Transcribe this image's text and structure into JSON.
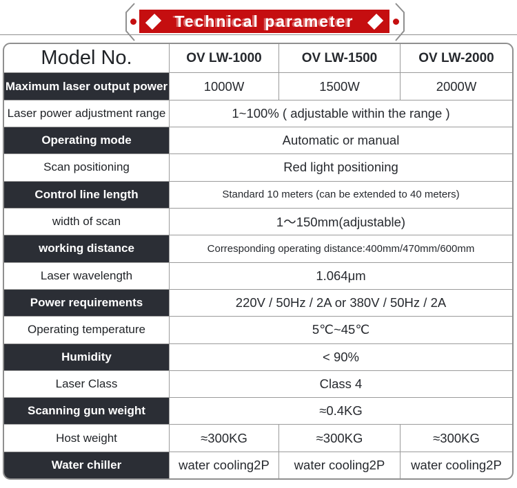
{
  "banner": {
    "title": "Technical parameter",
    "bg_color": "#c50e10",
    "diamond_icon": "diamond",
    "dot_color": "#c50e10"
  },
  "colors": {
    "banner_red": "#c50e10",
    "dark_cell": "#2b2e35",
    "grid_border": "#9a9a9a"
  },
  "table": {
    "header": {
      "label": "Model No.",
      "columns": [
        "OV LW-1000",
        "OV LW-1500",
        "OV LW-2000"
      ]
    },
    "rows": [
      {
        "label": "Maximum laser output power",
        "dark": true,
        "values": [
          "1000W",
          "1500W",
          "2000W"
        ]
      },
      {
        "label": "Laser power adjustment range",
        "dark": false,
        "span": "1~100% ( adjustable within the range )"
      },
      {
        "label": "Operating mode",
        "dark": true,
        "span": "Automatic or manual"
      },
      {
        "label": "Scan positioning",
        "dark": false,
        "span": "Red light positioning"
      },
      {
        "label": "Control line length",
        "dark": true,
        "span": "Standard 10 meters (can be extended to 40 meters)",
        "small": true
      },
      {
        "label": "width of scan",
        "dark": false,
        "span": "1～150mm(adjustable)"
      },
      {
        "label": "working distance",
        "dark": true,
        "span": "Corresponding operating distance:400mm/470mm/600mm",
        "small": true
      },
      {
        "label": "Laser wavelength",
        "dark": false,
        "span": "1.064μm"
      },
      {
        "label": "Power requirements",
        "dark": true,
        "span": "220V / 50Hz / 2A or 380V / 50Hz / 2A"
      },
      {
        "label": "Operating temperature",
        "dark": false,
        "span": "5℃~45℃"
      },
      {
        "label": "Humidity",
        "dark": true,
        "span": "< 90%"
      },
      {
        "label": "Laser Class",
        "dark": false,
        "span": "Class 4"
      },
      {
        "label": "Scanning gun weight",
        "dark": true,
        "span": "≈0.4KG"
      },
      {
        "label": "Host weight",
        "dark": false,
        "values": [
          "≈300KG",
          "≈300KG",
          "≈300KG"
        ]
      },
      {
        "label": "Water chiller",
        "dark": true,
        "values": [
          "water cooling2P",
          "water cooling2P",
          "water cooling2P"
        ]
      }
    ]
  }
}
